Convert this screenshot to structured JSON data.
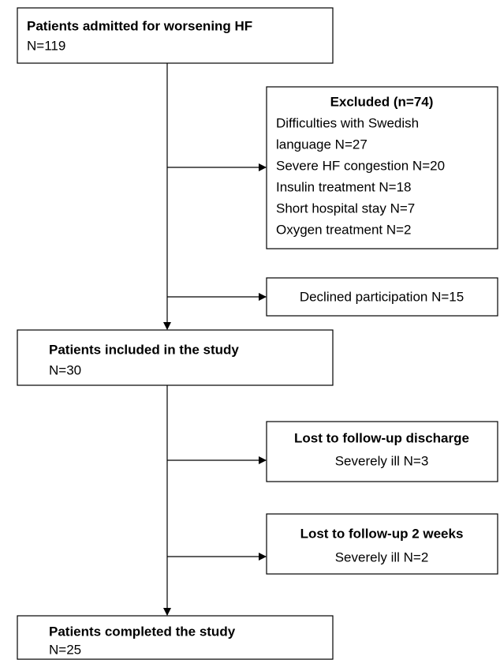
{
  "nodes": [
    {
      "title": "Patients admitted for worsening HF",
      "lines": [
        "N=119"
      ]
    },
    {
      "title": "Excluded (n=74)",
      "lines": [
        "Difficulties with Swedish",
        "language N=27",
        "Severe HF congestion N=20",
        "Insulin treatment N=18",
        "Short hospital stay N=7",
        "Oxygen treatment N=2"
      ]
    },
    {
      "lines": [
        "Declined participation N=15"
      ]
    },
    {
      "title": "Patients included in the study",
      "lines": [
        "N=30"
      ]
    },
    {
      "title": "Lost to follow-up discharge",
      "lines": [
        "Severely ill N=3"
      ]
    },
    {
      "title": "Lost to follow-up 2 weeks",
      "lines": [
        "Severely ill N=2"
      ]
    },
    {
      "title": "Patients completed the study",
      "lines": [
        "N=25"
      ]
    }
  ]
}
